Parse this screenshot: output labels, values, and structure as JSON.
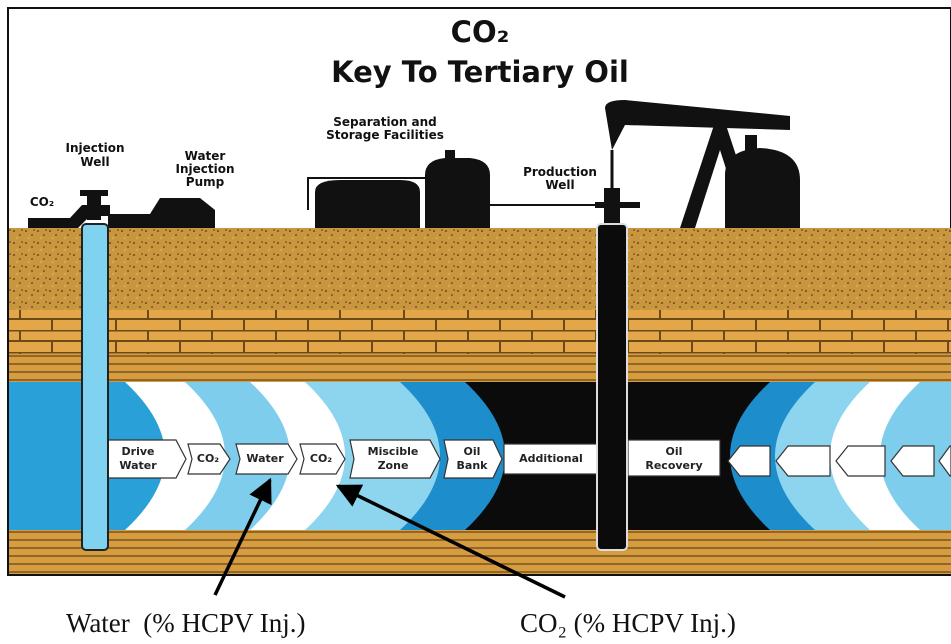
{
  "title": {
    "line1": "CO₂",
    "line2": "Key To Tertiary Oil"
  },
  "surface_labels": {
    "co2_inlet": "CO₂",
    "injection_well": [
      "Injection",
      "Well"
    ],
    "water_injection_pump": [
      "Water",
      "Injection",
      "Pump"
    ],
    "separation_storage": [
      "Separation and",
      "Storage Facilities"
    ],
    "production_well": [
      "Production",
      "Well"
    ]
  },
  "zones": [
    {
      "lines": [
        "Drive",
        "Water"
      ]
    },
    {
      "lines": [
        "CO₂"
      ]
    },
    {
      "lines": [
        "Water"
      ]
    },
    {
      "lines": [
        "CO₂"
      ]
    },
    {
      "lines": [
        "Miscible",
        "Zone"
      ]
    },
    {
      "lines": [
        "Oil",
        "Bank"
      ]
    },
    {
      "lines": [
        "Additional"
      ]
    },
    {
      "lines": [
        "Oil",
        "Recovery"
      ]
    }
  ],
  "annotations": [
    "Water  (% HCPV Inj.)",
    "CO₂ (% HCPV Inj.)"
  ]
}
